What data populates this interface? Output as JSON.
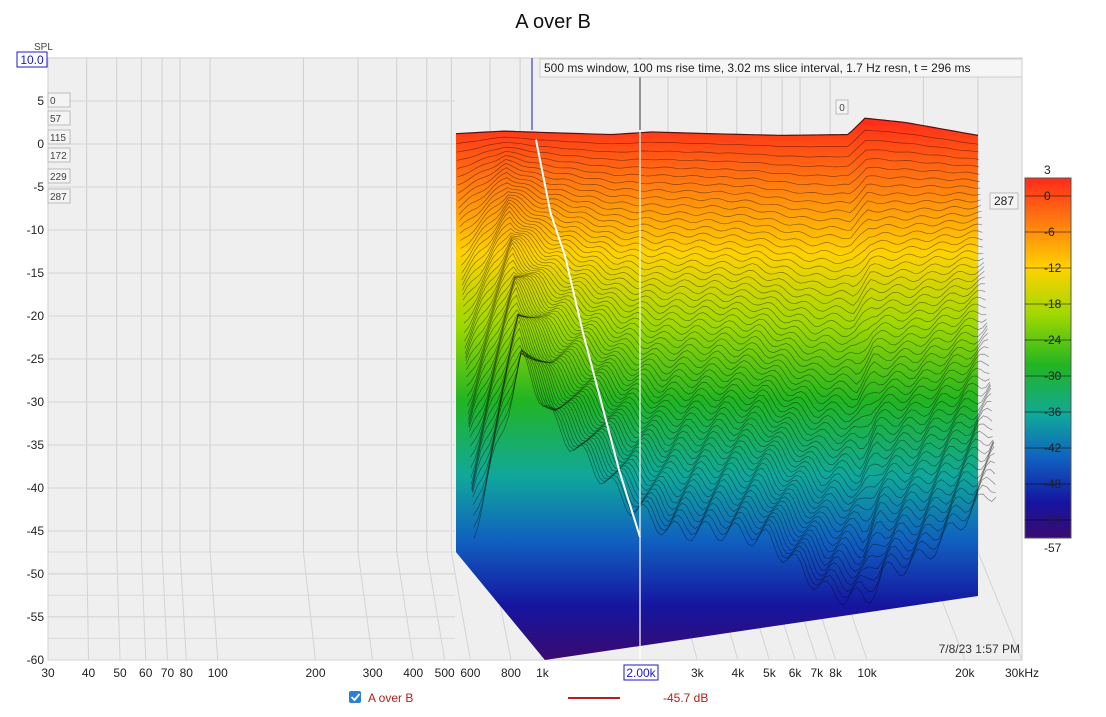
{
  "chart_data": {
    "type": "waterfall",
    "title": "A over B",
    "ylabel": "SPL",
    "y_top_value": "10.0",
    "ylim": [
      -60,
      10
    ],
    "y_ticks": [
      "5",
      "0",
      "-5",
      "-10",
      "-15",
      "-20",
      "-25",
      "-30",
      "-35",
      "-40",
      "-45",
      "-50",
      "-55",
      "-60"
    ],
    "x_scale": "log",
    "xlim": [
      30,
      30000
    ],
    "x_ticks": [
      {
        "value": 30,
        "label": "30"
      },
      {
        "value": 40,
        "label": "40"
      },
      {
        "value": 50,
        "label": "50"
      },
      {
        "value": 60,
        "label": "60"
      },
      {
        "value": 70,
        "label": "70"
      },
      {
        "value": 80,
        "label": "80"
      },
      {
        "value": 100,
        "label": "100"
      },
      {
        "value": 200,
        "label": "200"
      },
      {
        "value": 300,
        "label": "300"
      },
      {
        "value": 400,
        "label": "400"
      },
      {
        "value": 500,
        "label": "500"
      },
      {
        "value": 600,
        "label": "600"
      },
      {
        "value": 800,
        "label": "800"
      },
      {
        "value": 1000,
        "label": "1k"
      },
      {
        "value": 3000,
        "label": "3k"
      },
      {
        "value": 4000,
        "label": "4k"
      },
      {
        "value": 5000,
        "label": "5k"
      },
      {
        "value": 6000,
        "label": "6k"
      },
      {
        "value": 7000,
        "label": "7k"
      },
      {
        "value": 8000,
        "label": "8k"
      },
      {
        "value": 10000,
        "label": "10k"
      },
      {
        "value": 20000,
        "label": "20k"
      },
      {
        "value": 30000,
        "label": "30kHz"
      }
    ],
    "cursor_x_label": "2.00k",
    "time_labels": [
      "0",
      "57",
      "115",
      "172",
      "229",
      "287"
    ],
    "time_label_right": "287",
    "time_label_back": "0",
    "info": "500 ms window, 100 ms rise time, 3.02 ms slice interval, 1.7 Hz resn, t = 296 ms",
    "timestamp": "7/8/23 1:57 PM",
    "colorbar": {
      "min": -57,
      "max": 3,
      "ticks": [
        "3",
        "0",
        "-6",
        "-12",
        "-18",
        "-24",
        "-30",
        "-36",
        "-42",
        "-48",
        "-54",
        "-57"
      ],
      "colors": [
        "#ff2a1a",
        "#ff7a10",
        "#ffd200",
        "#9fd800",
        "#22b522",
        "#10a89a",
        "#1060c0",
        "#1515a0",
        "#3a0a70"
      ]
    },
    "series": [
      {
        "name": "A over B",
        "color": "#b21f1f",
        "readout": "-45.7 dB"
      }
    ],
    "front_slice": [
      {
        "f": 500,
        "db": 1.2
      },
      {
        "f": 700,
        "db": 1.5
      },
      {
        "f": 1000,
        "db": 1.3
      },
      {
        "f": 1500,
        "db": 1.1
      },
      {
        "f": 2000,
        "db": 1.4
      },
      {
        "f": 3000,
        "db": 1.2
      },
      {
        "f": 5000,
        "db": 1.0
      },
      {
        "f": 8000,
        "db": 1.1
      },
      {
        "f": 9000,
        "db": 3.0
      },
      {
        "f": 12000,
        "db": 2.5
      },
      {
        "f": 20000,
        "db": 1.0
      }
    ],
    "decay_floor": [
      {
        "f": 500,
        "db": -45
      },
      {
        "f": 700,
        "db": -25
      },
      {
        "f": 900,
        "db": -33
      },
      {
        "f": 1500,
        "db": -42
      },
      {
        "f": 2000,
        "db": -45
      },
      {
        "f": 3000,
        "db": -45
      },
      {
        "f": 4000,
        "db": -46
      },
      {
        "f": 6000,
        "db": -52
      },
      {
        "f": 8000,
        "db": -53
      },
      {
        "f": 9000,
        "db": -50
      },
      {
        "f": 12000,
        "db": -48
      },
      {
        "f": 20000,
        "db": -40
      }
    ],
    "cursor_trace": [
      {
        "t": 0,
        "db": 0.5
      },
      {
        "t": 40,
        "db": -8
      },
      {
        "t": 80,
        "db": -13
      },
      {
        "t": 130,
        "db": -22
      },
      {
        "t": 180,
        "db": -30
      },
      {
        "t": 230,
        "db": -38
      },
      {
        "t": 287,
        "db": -45.7
      }
    ]
  }
}
